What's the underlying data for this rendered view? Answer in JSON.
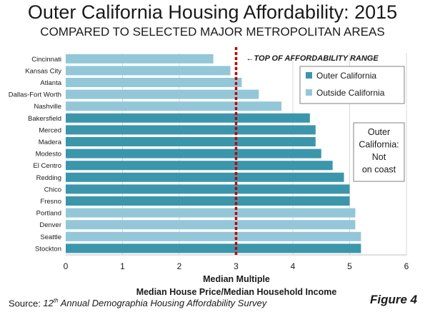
{
  "title": "Outer California Housing Affordability: 2015",
  "subtitle": "COMPARED TO SELECTED MAJOR METROPOLITAN AREAS",
  "source_prefix": "Source: ",
  "source_num": "12",
  "source_sup": "th",
  "source_rest": " Annual Demographia Housing Affordability Survey",
  "figure_label": "Figure 4",
  "colors": {
    "outer": "#3b96ac",
    "outside": "#93c7d8",
    "reference": "#c00000"
  },
  "chart_data": {
    "type": "bar",
    "orientation": "horizontal",
    "categories": [
      "Cincinnati",
      "Kansas City",
      "Atlanta",
      "Dallas-Fort Worth",
      "Nashville",
      "Bakersfield",
      "Merced",
      "Madera",
      "Modesto",
      "El Centro",
      "Redding",
      "Chico",
      "Fresno",
      "Portland",
      "Denver",
      "Seattle",
      "Stockton"
    ],
    "values": [
      2.6,
      2.9,
      3.1,
      3.4,
      3.8,
      4.3,
      4.4,
      4.4,
      4.5,
      4.7,
      4.9,
      5.0,
      5.0,
      5.1,
      5.1,
      5.2,
      5.2
    ],
    "groups": [
      "outside",
      "outside",
      "outside",
      "outside",
      "outside",
      "outer",
      "outer",
      "outer",
      "outer",
      "outer",
      "outer",
      "outer",
      "outer",
      "outside",
      "outside",
      "outside",
      "outer"
    ],
    "xlabel": "Median Multiple",
    "xlabel2": "Median House Price/Median Household Income",
    "xlim": [
      0,
      6
    ],
    "xticks": [
      0,
      1,
      2,
      3,
      4,
      5,
      6
    ],
    "reference_line": {
      "value": 3.0,
      "label": "TOP OF AFFORDABILITY RANGE",
      "arrow": "←"
    },
    "legend": {
      "position": "top-right",
      "entries": [
        {
          "key": "outer",
          "label": "Outer California"
        },
        {
          "key": "outside",
          "label": "Outside California"
        }
      ]
    },
    "annotation_lines": [
      "Outer",
      "California:",
      "Not",
      "on coast"
    ]
  }
}
